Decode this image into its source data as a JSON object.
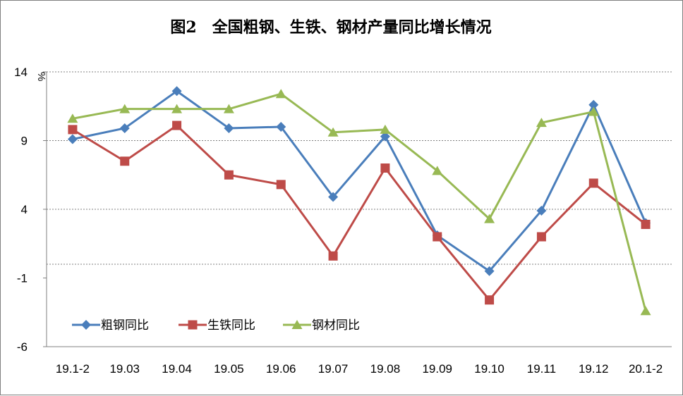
{
  "chart_data": {
    "type": "line",
    "title": "图2　全国粗钢、生铁、钢材产量同比增长情况",
    "y_unit": "%",
    "xlabel": "",
    "ylabel": "",
    "categories": [
      "19.1-2",
      "19.03",
      "19.04",
      "19.05",
      "19.06",
      "19.07",
      "19.08",
      "19.09",
      "19.10",
      "19.11",
      "19.12",
      "20.1-2"
    ],
    "ylim": [
      -6,
      14
    ],
    "yticks": [
      -6,
      -1,
      4,
      9,
      14
    ],
    "y_tick_labels": [
      "-6",
      "-1",
      "4",
      "9",
      "14"
    ],
    "gridlines_y": [
      -6,
      0,
      4,
      9,
      14
    ],
    "legend_position": "bottom-left",
    "series": [
      {
        "name": "粗钢同比",
        "color": "#4a7ebb",
        "marker": "diamond",
        "values": [
          9.1,
          9.9,
          12.6,
          9.9,
          10.0,
          4.9,
          9.3,
          2.1,
          -0.5,
          3.9,
          11.6,
          3.0
        ]
      },
      {
        "name": "生铁同比",
        "color": "#be4b48",
        "marker": "square",
        "values": [
          9.8,
          7.5,
          10.1,
          6.5,
          5.8,
          0.6,
          7.0,
          2.0,
          -2.6,
          2.0,
          5.9,
          2.9
        ]
      },
      {
        "name": "钢材同比",
        "color": "#98b954",
        "marker": "triangle",
        "values": [
          10.6,
          11.3,
          11.3,
          11.3,
          12.4,
          9.6,
          9.8,
          6.8,
          3.3,
          10.3,
          11.1,
          -3.4
        ]
      }
    ]
  }
}
